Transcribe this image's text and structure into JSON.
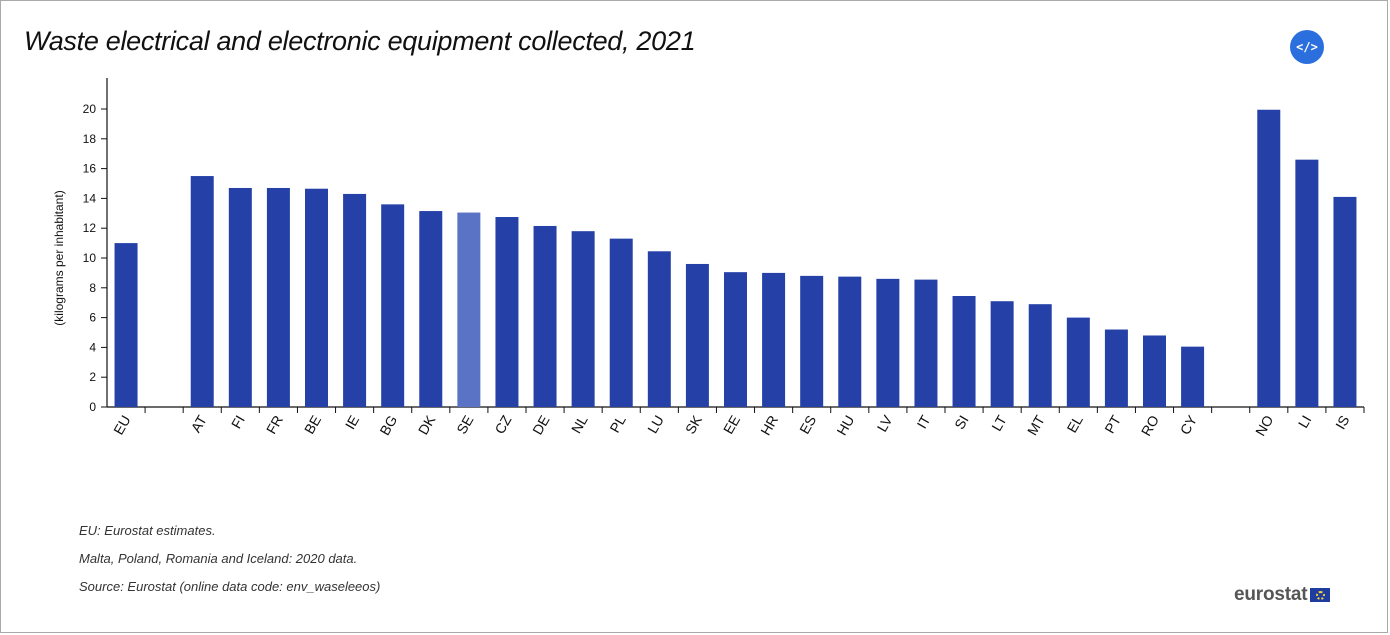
{
  "title": "Waste electrical and electronic equipment collected, 2021",
  "embed_button": {
    "label": "</>",
    "icon": "embed-code-icon"
  },
  "notes": [
    "EU: Eurostat estimates.",
    "Malta, Poland, Romania and Iceland: 2020 data.",
    "Source: Eurostat (online data code: env_waseleeos)"
  ],
  "logo": {
    "text": "eurostat",
    "icon": "eu-flag-icon"
  },
  "colors": {
    "bar": "#2541a8",
    "highlight": "#5b73c4",
    "embed": "#2b6fde"
  },
  "chart_data": {
    "type": "bar",
    "title": "Waste electrical and electronic equipment collected, 2021",
    "ylabel": "(kilograms per inhabitant)",
    "xlabel": "",
    "ylim": [
      0,
      21
    ],
    "yticks": [
      0,
      2,
      4,
      6,
      8,
      10,
      12,
      14,
      16,
      18,
      20
    ],
    "grid": false,
    "highlight": "SE",
    "categories": [
      "EU",
      "",
      "AT",
      "FI",
      "FR",
      "BE",
      "IE",
      "BG",
      "DK",
      "SE",
      "CZ",
      "DE",
      "NL",
      "PL",
      "LU",
      "SK",
      "EE",
      "HR",
      "ES",
      "HU",
      "LV",
      "IT",
      "SI",
      "LT",
      "MT",
      "EL",
      "PT",
      "RO",
      "CY",
      "",
      "NO",
      "LI",
      "IS"
    ],
    "values": [
      11.0,
      null,
      15.5,
      14.7,
      14.7,
      14.65,
      14.3,
      13.6,
      13.15,
      13.05,
      12.75,
      12.15,
      11.8,
      11.3,
      10.45,
      9.6,
      9.05,
      9.0,
      8.8,
      8.75,
      8.6,
      8.55,
      7.45,
      7.1,
      6.9,
      6.0,
      5.2,
      4.8,
      4.05,
      null,
      19.95,
      16.6,
      14.1
    ]
  }
}
